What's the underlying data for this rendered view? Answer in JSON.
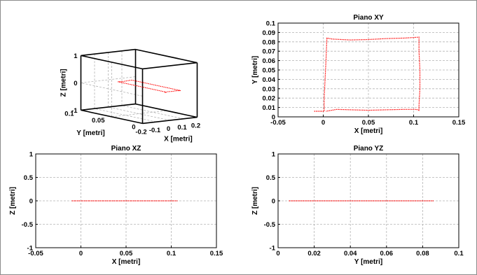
{
  "chart_data": [
    {
      "type": "line",
      "id": "xyz3d",
      "title": "",
      "xlabel": "X [metri]",
      "ylabel": "Y [metri]",
      "zlabel": "Z [metri]",
      "xlim": [
        -0.2,
        0.2
      ],
      "ylim": [
        0,
        0.1
      ],
      "zlim": [
        -1,
        1
      ],
      "xticks": [
        "-0.2",
        "-0.1",
        "0",
        "0.1",
        "0.2"
      ],
      "yticks": [
        "0",
        "0.05",
        "0.1"
      ],
      "zticks": [
        "-1",
        "0",
        "1"
      ],
      "grid": true,
      "series": [
        {
          "color": "#ff0000",
          "points": [
            [
              -0.01,
              0.006,
              0
            ],
            [
              0.003,
              0.006,
              0
            ],
            [
              0.003,
              0.085,
              0
            ],
            [
              0.03,
              0.083,
              0
            ],
            [
              0.06,
              0.084,
              0
            ],
            [
              0.085,
              0.085,
              0
            ],
            [
              0.106,
              0.085,
              0
            ],
            [
              0.106,
              0.006,
              0
            ],
            [
              0.08,
              0.008,
              0
            ],
            [
              0.05,
              0.007,
              0
            ],
            [
              0.02,
              0.008,
              0
            ],
            [
              0.003,
              0.006,
              0
            ]
          ]
        }
      ]
    },
    {
      "type": "line",
      "id": "xy",
      "title": "Piano XY",
      "xlabel": "X [metri]",
      "ylabel": "Y [metri]",
      "xlim": [
        -0.05,
        0.15
      ],
      "ylim": [
        0,
        0.1
      ],
      "xticks": [
        "-0.05",
        "0",
        "0.05",
        "0.1",
        "0.15"
      ],
      "yticks": [
        "0",
        "0.01",
        "0.02",
        "0.03",
        "0.04",
        "0.05",
        "0.06",
        "0.07",
        "0.08",
        "0.09",
        "0.1"
      ],
      "grid": true,
      "series": [
        {
          "color": "#ff0000",
          "x": [
            -0.01,
            0.001,
            0.001,
            0.002,
            0.003,
            0.004,
            0.01,
            0.03,
            0.05,
            0.07,
            0.09,
            0.106,
            0.106,
            0.107,
            0.107,
            0.106,
            0.106,
            0.103,
            0.09,
            0.07,
            0.05,
            0.03,
            0.015,
            0.003
          ],
          "y": [
            0.006,
            0.006,
            0.02,
            0.04,
            0.06,
            0.084,
            0.083,
            0.082,
            0.0825,
            0.0835,
            0.084,
            0.085,
            0.07,
            0.05,
            0.03,
            0.012,
            0.007,
            0.008,
            0.008,
            0.0075,
            0.007,
            0.0075,
            0.008,
            0.006
          ]
        }
      ]
    },
    {
      "type": "line",
      "id": "xz",
      "title": "Piano XZ",
      "xlabel": "X [metri]",
      "ylabel": "Z [metri]",
      "xlim": [
        -0.05,
        0.15
      ],
      "ylim": [
        -1,
        1
      ],
      "xticks": [
        "-0.05",
        "0",
        "0.05",
        "0.1",
        "0.15"
      ],
      "yticks": [
        "-1",
        "-0.5",
        "0",
        "0.5",
        "1"
      ],
      "grid": true,
      "series": [
        {
          "color": "#ff0000",
          "x": [
            -0.01,
            0.107
          ],
          "y": [
            0,
            0
          ]
        }
      ]
    },
    {
      "type": "line",
      "id": "yz",
      "title": "Piano YZ",
      "xlabel": "Y [metri]",
      "ylabel": "Z [metri]",
      "xlim": [
        0,
        0.1
      ],
      "ylim": [
        -1,
        1
      ],
      "xticks": [
        "0",
        "0.02",
        "0.04",
        "0.06",
        "0.08",
        "0.1"
      ],
      "yticks": [
        "-1",
        "-0.5",
        "0",
        "0.5",
        "1"
      ],
      "grid": true,
      "series": [
        {
          "color": "#ff0000",
          "x": [
            0.006,
            0.086
          ],
          "y": [
            0,
            0
          ]
        }
      ]
    }
  ]
}
